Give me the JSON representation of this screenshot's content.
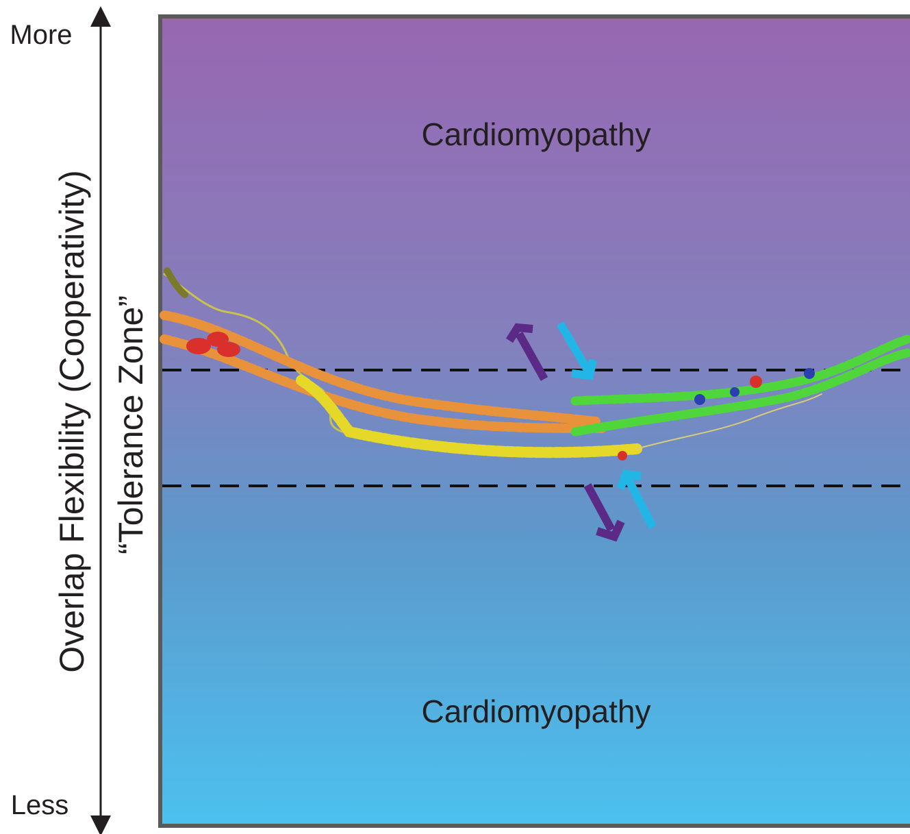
{
  "axis": {
    "top": "More",
    "bottom": "Less",
    "label": "Overlap Flexibility (Cooperativity)"
  },
  "zone_label": "“Tolerance Zone”",
  "regions": [
    "Cardiomyopathy",
    "Cardiomyopathy"
  ]
}
